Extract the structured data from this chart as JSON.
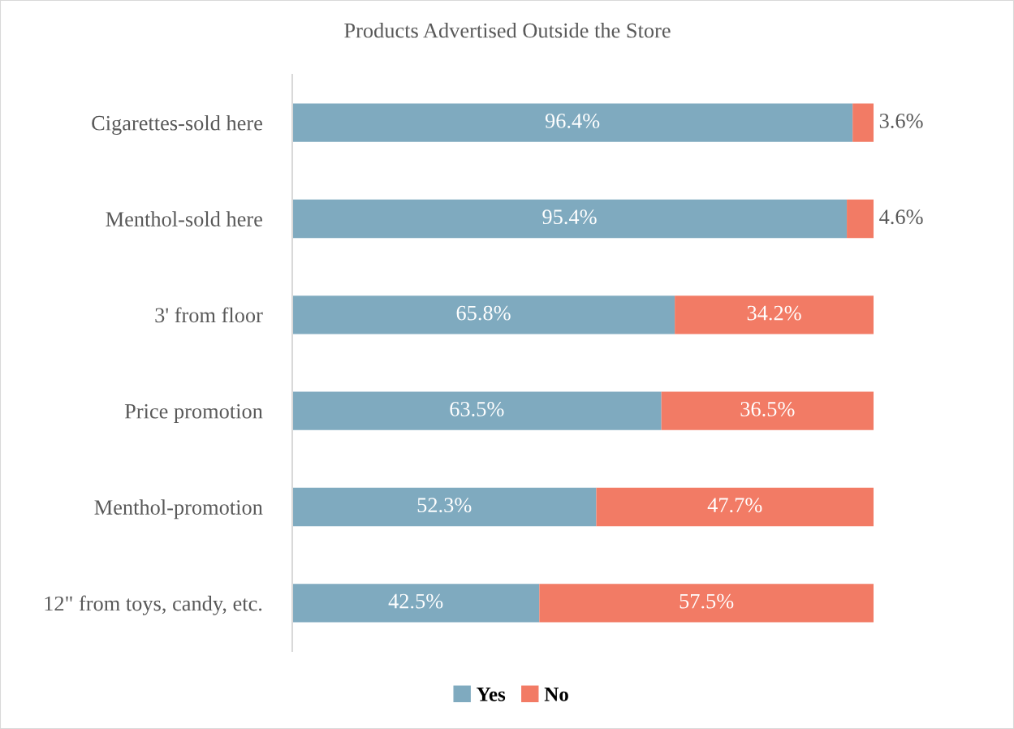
{
  "chart_data": {
    "type": "bar",
    "orientation": "horizontal",
    "stacked": true,
    "title": "Products Advertised Outside the Store",
    "categories": [
      "Cigarettes-sold here",
      "Menthol-sold here",
      "3' from floor",
      "Price promotion",
      "Menthol-promotion",
      "12\" from toys, candy, etc."
    ],
    "series": [
      {
        "name": "Yes",
        "color": "#7faabf",
        "values": [
          96.4,
          95.4,
          65.8,
          63.5,
          52.3,
          42.5
        ],
        "value_labels": [
          "96.4%",
          "95.4%",
          "65.8%",
          "63.5%",
          "52.3%",
          "42.5%"
        ]
      },
      {
        "name": "No",
        "color": "#f27b65",
        "values": [
          3.6,
          4.6,
          34.2,
          36.5,
          47.7,
          57.5
        ],
        "value_labels": [
          "3.6%",
          "4.6%",
          "34.2%",
          "36.5%",
          "47.7%",
          "57.5%"
        ]
      }
    ],
    "legend": "bottom",
    "grid": false,
    "tick_labels": "y"
  }
}
